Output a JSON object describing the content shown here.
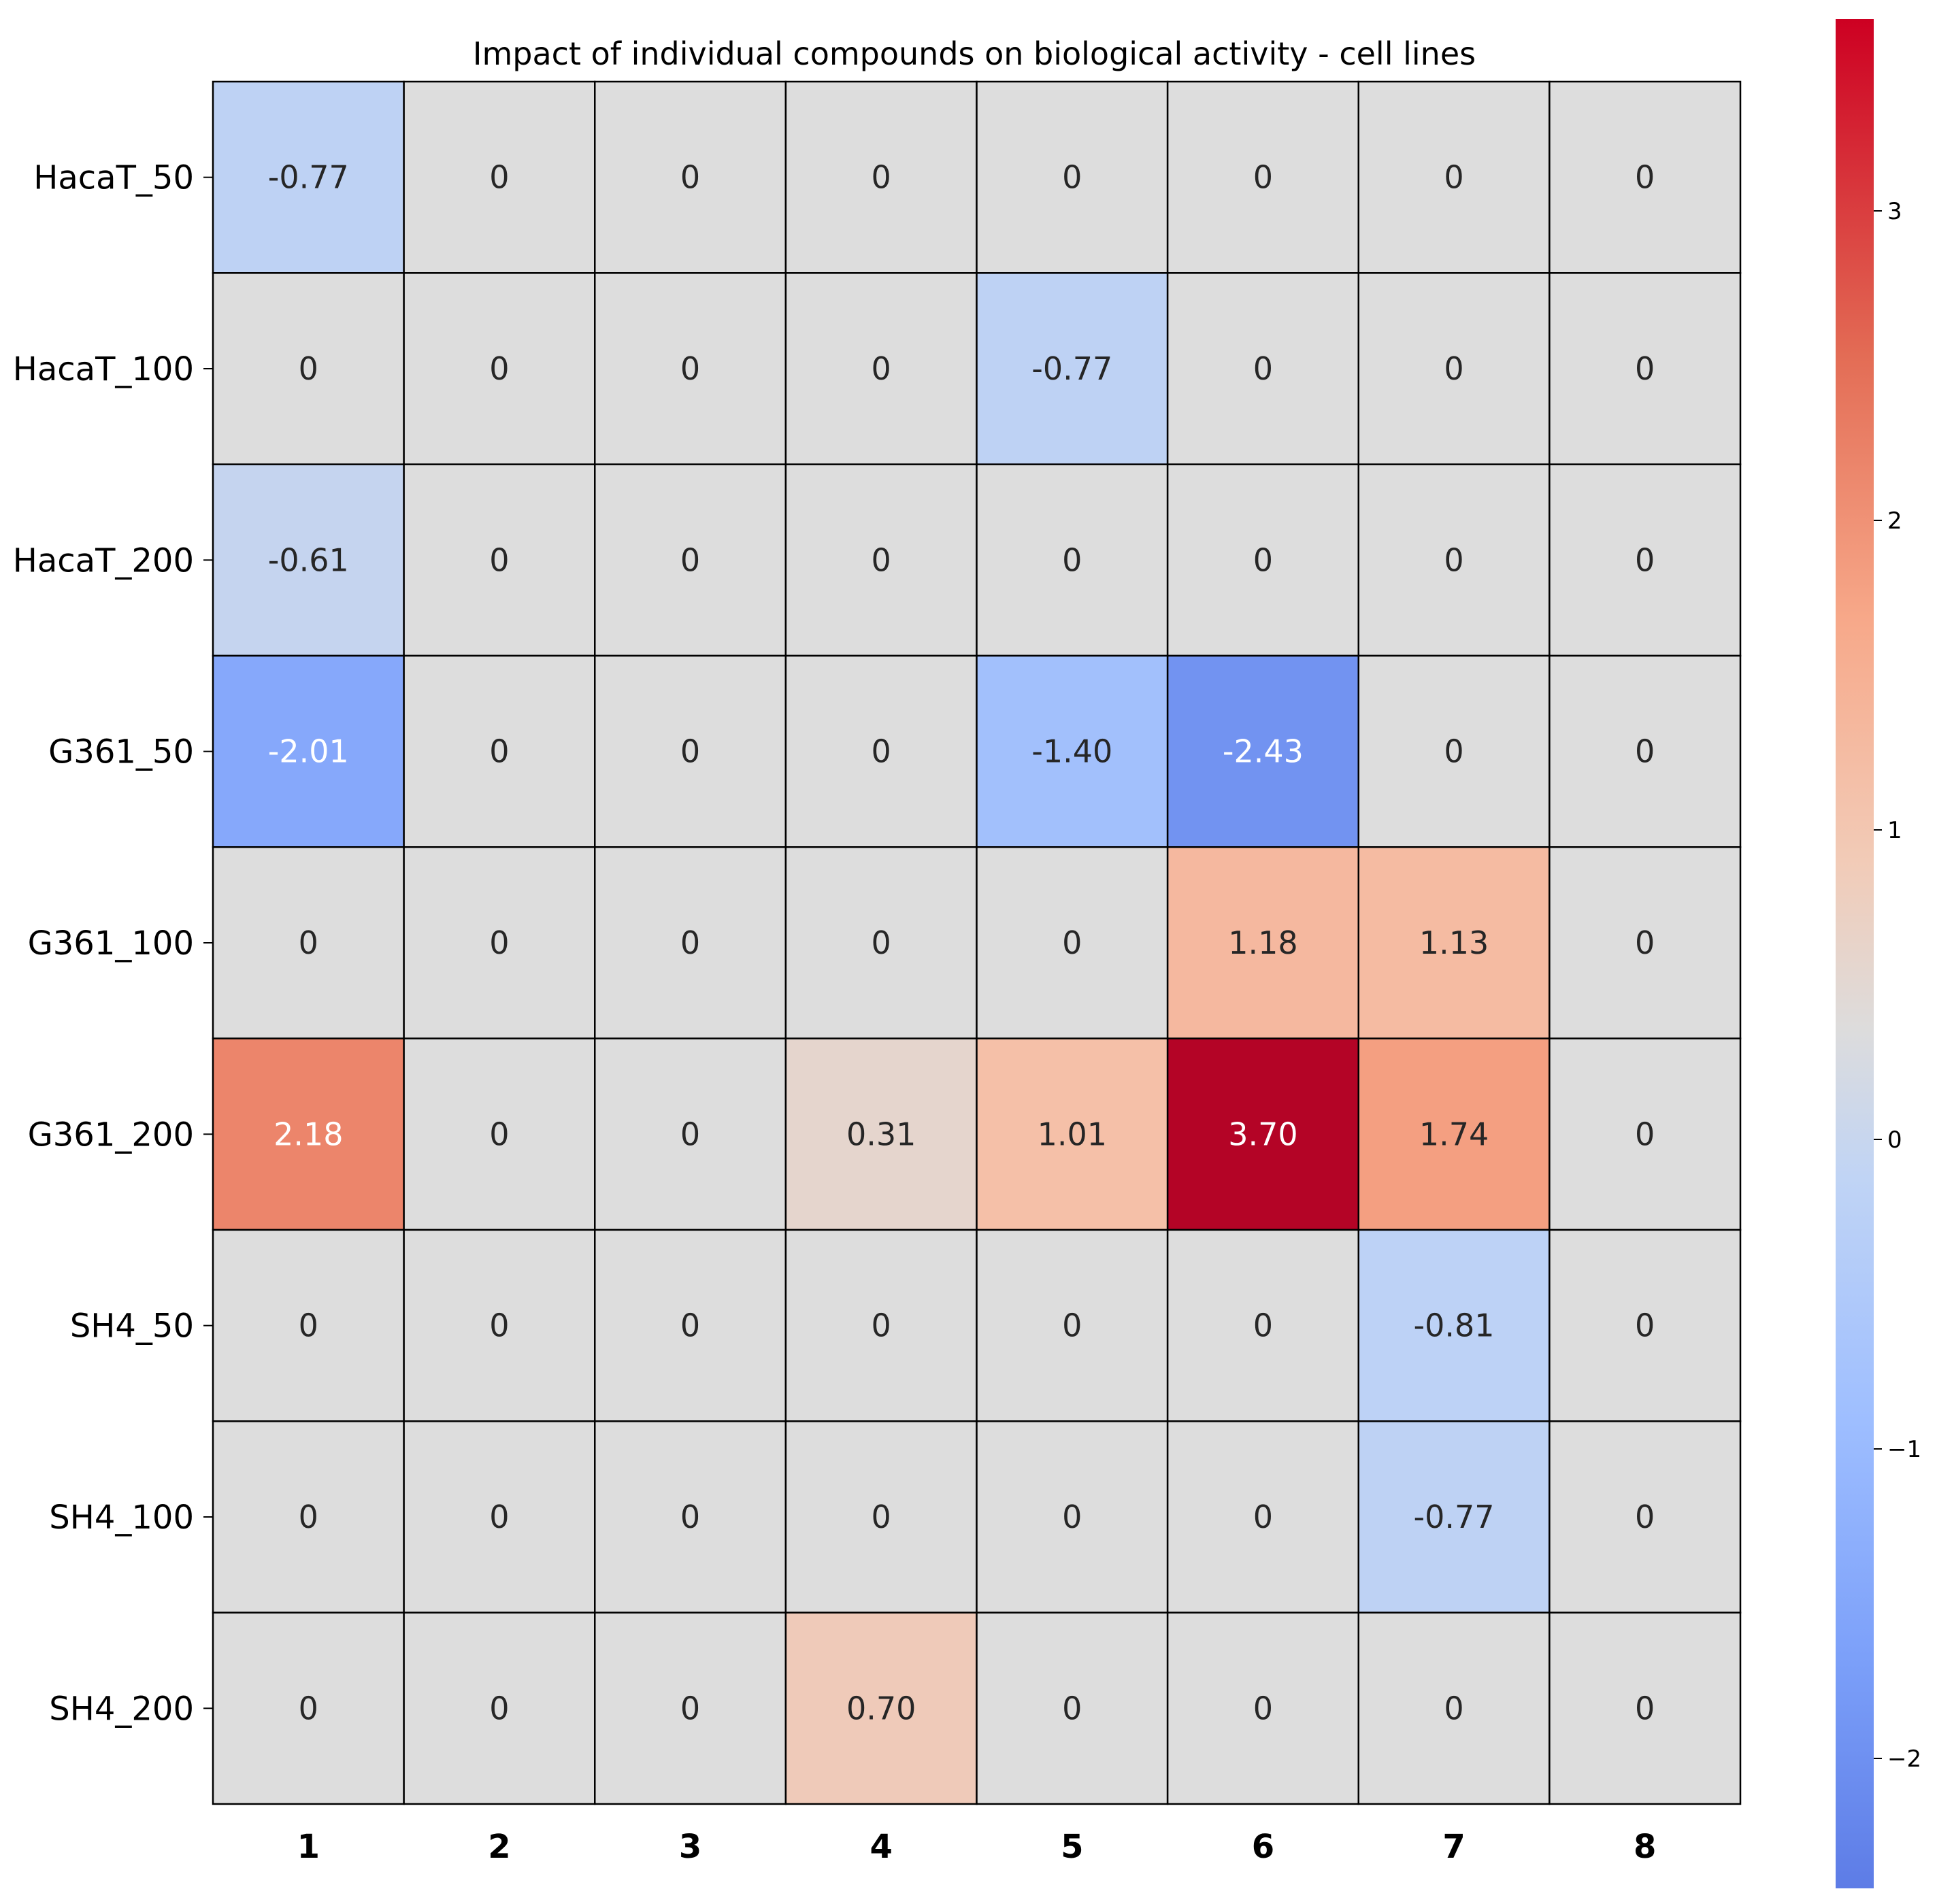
{
  "chart_data": {
    "type": "heatmap",
    "title": "Impact of individual compounds on biological activity - cell lines",
    "xlabel": "",
    "ylabel": "",
    "columns": [
      "1",
      "2",
      "3",
      "4",
      "5",
      "6",
      "7",
      "8"
    ],
    "rows": [
      "HacaT_50",
      "HacaT_100",
      "HacaT_200",
      "G361_50",
      "G361_100",
      "G361_200",
      "SH4_50",
      "SH4_100",
      "SH4_200"
    ],
    "values": [
      [
        -0.77,
        0,
        0,
        0,
        0,
        0,
        0,
        0
      ],
      [
        0,
        0,
        0,
        0,
        -0.77,
        0,
        0,
        0
      ],
      [
        -0.61,
        0,
        0,
        0,
        0,
        0,
        0,
        0
      ],
      [
        -2.01,
        0,
        0,
        0,
        -1.4,
        -2.43,
        0,
        0
      ],
      [
        0,
        0,
        0,
        0,
        0,
        1.18,
        1.13,
        0
      ],
      [
        2.18,
        0,
        0,
        0.31,
        1.01,
        3.7,
        1.74,
        0
      ],
      [
        0,
        0,
        0,
        0,
        0,
        0,
        -0.81,
        0
      ],
      [
        0,
        0,
        0,
        0,
        0,
        0,
        -0.77,
        0
      ],
      [
        0,
        0,
        0,
        0.7,
        0,
        0,
        0,
        0
      ]
    ],
    "annotations": [
      [
        "-0.77",
        "0",
        "0",
        "0",
        "0",
        "0",
        "0",
        "0"
      ],
      [
        "0",
        "0",
        "0",
        "0",
        "-0.77",
        "0",
        "0",
        "0"
      ],
      [
        "-0.61",
        "0",
        "0",
        "0",
        "0",
        "0",
        "0",
        "0"
      ],
      [
        "-2.01",
        "0",
        "0",
        "0",
        "-1.40",
        "-2.43",
        "0",
        "0"
      ],
      [
        "0",
        "0",
        "0",
        "0",
        "0",
        "1.18",
        "1.13",
        "0"
      ],
      [
        "2.18",
        "0",
        "0",
        "0.31",
        "1.01",
        "3.70",
        "1.74",
        "0"
      ],
      [
        "0",
        "0",
        "0",
        "0",
        "0",
        "0",
        "-0.81",
        "0"
      ],
      [
        "0",
        "0",
        "0",
        "0",
        "0",
        "0",
        "-0.77",
        "0"
      ],
      [
        "0",
        "0",
        "0",
        "0.70",
        "0",
        "0",
        "0",
        "0"
      ]
    ],
    "colormap": "coolwarm",
    "colorbar": {
      "vmin": -2.43,
      "vmax": 3.7,
      "center": 0,
      "ticks": [
        -2,
        -1,
        0,
        1,
        2,
        3
      ],
      "tick_labels": [
        "−2",
        "−1",
        "0",
        "1",
        "2",
        "3"
      ]
    },
    "colors": {
      "zero_cell": "#dddddd",
      "grid_line": "#000000",
      "text_dark": "#262626",
      "text_light": "#ffffff"
    }
  }
}
